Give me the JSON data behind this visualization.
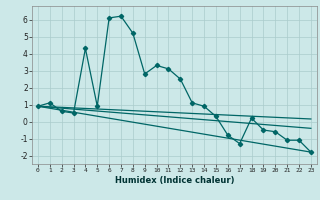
{
  "xlabel": "Humidex (Indice chaleur)",
  "xlim": [
    -0.5,
    23.5
  ],
  "ylim": [
    -2.5,
    6.8
  ],
  "yticks": [
    -2,
    -1,
    0,
    1,
    2,
    3,
    4,
    5,
    6
  ],
  "xticks": [
    0,
    1,
    2,
    3,
    4,
    5,
    6,
    7,
    8,
    9,
    10,
    11,
    12,
    13,
    14,
    15,
    16,
    17,
    18,
    19,
    20,
    21,
    22,
    23
  ],
  "bg_color": "#cce8e8",
  "grid_color": "#aacccc",
  "line_color": "#006666",
  "line1_x": [
    0,
    1,
    2,
    3,
    4,
    5,
    6,
    7,
    8,
    9,
    10,
    11,
    12,
    13,
    14,
    15,
    16,
    17,
    18,
    19,
    20,
    21,
    22,
    23
  ],
  "line1_y": [
    0.9,
    1.1,
    0.6,
    0.5,
    4.3,
    0.9,
    6.1,
    6.2,
    5.2,
    2.8,
    3.3,
    3.1,
    2.5,
    1.1,
    0.9,
    0.3,
    -0.8,
    -1.3,
    0.2,
    -0.5,
    -0.6,
    -1.1,
    -1.1,
    -1.8
  ],
  "line2_x": [
    0,
    23
  ],
  "line2_y": [
    0.9,
    -1.8
  ],
  "line3_x": [
    0,
    23
  ],
  "line3_y": [
    0.9,
    0.15
  ],
  "line4_x": [
    0,
    23
  ],
  "line4_y": [
    0.9,
    -0.4
  ]
}
